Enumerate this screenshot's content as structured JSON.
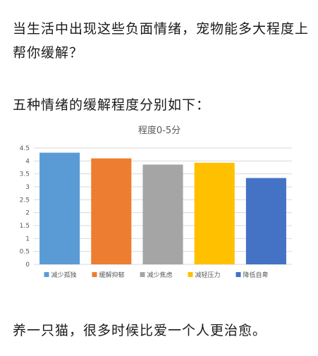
{
  "intro": {
    "question": "当生活中出现这些负面情绪，宠物能多大程度上帮你缓解？",
    "lead": "五种情绪的缓解程度分别如下："
  },
  "conclusion": "养一只猫，很多时候比爱一个人更治愈。",
  "chart_data": {
    "type": "bar",
    "title": "程度0-5分",
    "xlabel": "",
    "ylabel": "",
    "ylim": [
      0,
      4.5
    ],
    "yticks": [
      "0",
      "0.5",
      "1",
      "1.5",
      "2",
      "2.5",
      "3",
      "3.5",
      "4",
      "4.5"
    ],
    "grid": true,
    "legend_position": "bottom",
    "categories": [
      "减少孤独",
      "缓解抑郁",
      "减少焦虑",
      "减轻压力",
      "降低自卑"
    ],
    "values": [
      4.32,
      4.1,
      3.86,
      3.93,
      3.34
    ],
    "colors": [
      "#5b9bd5",
      "#ed7d31",
      "#a5a5a5",
      "#ffc000",
      "#4472c4"
    ]
  }
}
